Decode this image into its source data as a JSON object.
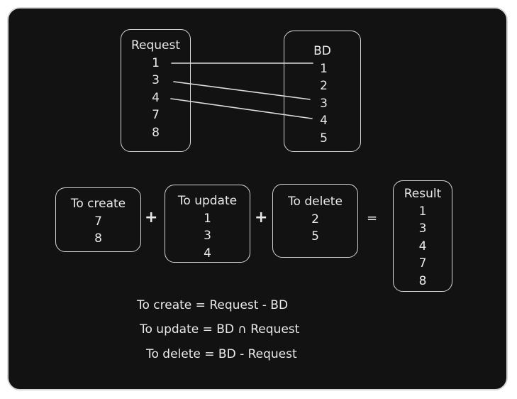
{
  "request": {
    "title": "Request",
    "items": [
      "1",
      "3",
      "4",
      "7",
      "8"
    ]
  },
  "bd": {
    "title": "BD",
    "items": [
      "1",
      "2",
      "3",
      "4",
      "5"
    ]
  },
  "links": [
    {
      "from": "1",
      "to": "1"
    },
    {
      "from": "3",
      "to": "3"
    },
    {
      "from": "4",
      "to": "4"
    }
  ],
  "to_create": {
    "title": "To create",
    "items": [
      "7",
      "8"
    ]
  },
  "to_update": {
    "title": "To update",
    "items": [
      "1",
      "3",
      "4"
    ]
  },
  "to_delete": {
    "title": "To delete",
    "items": [
      "2",
      "5"
    ]
  },
  "result": {
    "title": "Result",
    "items": [
      "1",
      "3",
      "4",
      "7",
      "8"
    ]
  },
  "operators": {
    "plus": "+",
    "equals": "="
  },
  "formulas": [
    "To create = Request - BD",
    "To update = BD ∩ Request",
    "To delete = BD - Request"
  ]
}
